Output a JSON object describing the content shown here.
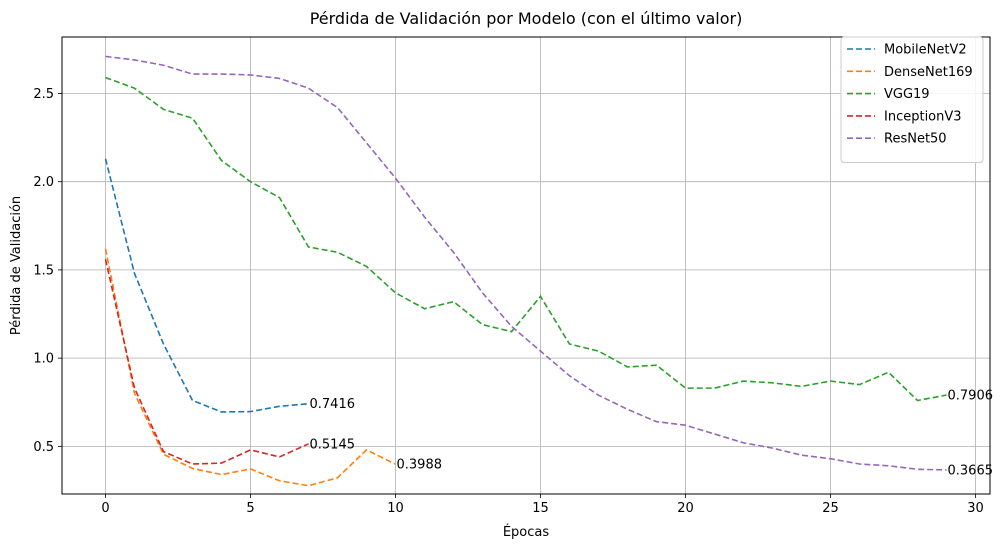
{
  "chart_data": {
    "type": "line",
    "title": "Pérdida de Validación por Modelo (con el último valor)",
    "xlabel": "Épocas",
    "ylabel": "Pérdida de Validación",
    "xlim": [
      -1.5,
      30.5
    ],
    "ylim": [
      0.23,
      2.82
    ],
    "x_ticks": [
      0,
      5,
      10,
      15,
      20,
      25,
      30
    ],
    "y_ticks": [
      0.5,
      1.0,
      1.5,
      2.0,
      2.5
    ],
    "x_tick_labels": [
      "0",
      "5",
      "10",
      "15",
      "20",
      "25",
      "30"
    ],
    "y_tick_labels": [
      "0.5",
      "1.0",
      "1.5",
      "2.0",
      "2.5"
    ],
    "grid": true,
    "legend_position": "top-right",
    "line_style": "dashed",
    "series": [
      {
        "name": "MobileNetV2",
        "color": "#1f77b4",
        "x": [
          0,
          1,
          2,
          3,
          4,
          5,
          6,
          7
        ],
        "values": [
          2.13,
          1.48,
          1.08,
          0.76,
          0.695,
          0.697,
          0.727,
          0.7416
        ],
        "end_label": "0.7416"
      },
      {
        "name": "DenseNet169",
        "color": "#ff7f0e",
        "x": [
          0,
          1,
          2,
          3,
          4,
          5,
          6,
          7,
          8,
          9,
          10
        ],
        "values": [
          1.62,
          0.8,
          0.455,
          0.375,
          0.34,
          0.372,
          0.305,
          0.277,
          0.322,
          0.48,
          0.3988
        ],
        "end_label": "0.3988"
      },
      {
        "name": "VGG19",
        "color": "#2ca02c",
        "x": [
          0,
          1,
          2,
          3,
          4,
          5,
          6,
          7,
          8,
          9,
          10,
          11,
          12,
          13,
          14,
          15,
          16,
          17,
          18,
          19,
          20,
          21,
          22,
          23,
          24,
          25,
          26,
          27,
          28,
          29
        ],
        "values": [
          2.59,
          2.53,
          2.41,
          2.36,
          2.12,
          2.0,
          1.91,
          1.63,
          1.6,
          1.52,
          1.37,
          1.28,
          1.32,
          1.19,
          1.15,
          1.35,
          1.08,
          1.04,
          0.95,
          0.96,
          0.83,
          0.83,
          0.87,
          0.86,
          0.84,
          0.87,
          0.85,
          0.92,
          0.76,
          0.7906
        ],
        "end_label": "0.7906"
      },
      {
        "name": "InceptionV3",
        "color": "#d62728",
        "x": [
          0,
          1,
          2,
          3,
          4,
          5,
          6,
          7
        ],
        "values": [
          1.56,
          0.83,
          0.47,
          0.4,
          0.405,
          0.48,
          0.44,
          0.5145
        ],
        "end_label": "0.5145"
      },
      {
        "name": "ResNet50",
        "color": "#9467bd",
        "x": [
          0,
          1,
          2,
          3,
          4,
          5,
          6,
          7,
          8,
          9,
          10,
          11,
          12,
          13,
          14,
          15,
          16,
          17,
          18,
          19,
          20,
          21,
          22,
          23,
          24,
          25,
          26,
          27,
          28,
          29
        ],
        "values": [
          2.71,
          2.69,
          2.66,
          2.61,
          2.61,
          2.605,
          2.585,
          2.53,
          2.42,
          2.22,
          2.02,
          1.8,
          1.6,
          1.37,
          1.18,
          1.04,
          0.9,
          0.79,
          0.71,
          0.64,
          0.62,
          0.57,
          0.52,
          0.49,
          0.45,
          0.43,
          0.4,
          0.39,
          0.37,
          0.3665
        ],
        "end_label": "0.3665"
      }
    ]
  }
}
